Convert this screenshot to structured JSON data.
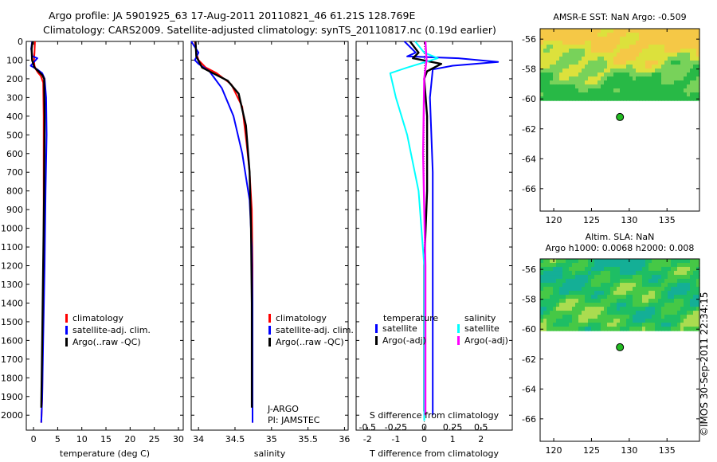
{
  "header": {
    "line1": "Argo profile: JA 5901925_63 17-Aug-2011 20110821_46 61.21S 128.769E",
    "line2": "Climatology: CARS2009. Satellite-adjusted climatology: synTS_20110817.nc (0.19d earlier)"
  },
  "watermark": "©IMOS 30-Sep-2011 22:34:15",
  "colors": {
    "climatology": "#ff0000",
    "satellite": "#0000ff",
    "argo": "#000000",
    "s_satellite": "#00ffff",
    "s_argo": "#ff00ff",
    "dot": "#22bb22"
  },
  "chart_data": [
    {
      "type": "line",
      "xlabel": "temperature (deg C)",
      "xlim": [
        -1.5,
        31
      ],
      "xticks": [
        "0",
        "5",
        "10",
        "15",
        "20",
        "25",
        "30"
      ],
      "ylim": [
        0,
        2080
      ],
      "yticks": [
        "0",
        "100",
        "200",
        "300",
        "400",
        "500",
        "600",
        "700",
        "800",
        "900",
        "1000",
        "1100",
        "1200",
        "1300",
        "1400",
        "1500",
        "1600",
        "1700",
        "1800",
        "1900",
        "2000"
      ],
      "legend": [
        "climatology",
        "satellite-adj. clim.",
        "Argo(..raw -QC)"
      ],
      "series": [
        {
          "name": "climatology",
          "x": [
            0.3,
            0.2,
            0.1,
            0.2,
            0.5,
            1.0,
            1.5,
            2.0,
            2.1,
            2.1,
            2.1,
            2.0,
            1.9,
            1.8,
            1.6
          ],
          "y": [
            0,
            60,
            100,
            130,
            150,
            170,
            185,
            220,
            400,
            700,
            1000,
            1300,
            1600,
            1900,
            2040
          ]
        },
        {
          "name": "satellite-adj. clim.",
          "x": [
            -0.3,
            -0.5,
            -0.2,
            0.8,
            -0.6,
            0.8,
            1.8,
            2.3,
            2.6,
            2.7,
            2.5,
            2.3,
            2.0,
            1.8,
            1.6
          ],
          "y": [
            0,
            40,
            80,
            90,
            130,
            150,
            170,
            200,
            300,
            500,
            800,
            1200,
            1600,
            1900,
            2040
          ]
        },
        {
          "name": "Argo(..raw -QC)",
          "x": [
            -0.2,
            -0.4,
            -0.3,
            0.2,
            1.0,
            1.8,
            2.2,
            2.3,
            2.2,
            2.0,
            1.8,
            1.6
          ],
          "y": [
            0,
            40,
            100,
            140,
            160,
            180,
            200,
            400,
            800,
            1200,
            1600,
            1960
          ]
        }
      ]
    },
    {
      "type": "line",
      "xlabel": "salinity",
      "xlim": [
        33.9,
        36.05
      ],
      "xticks": [
        "34",
        "34.5",
        "35",
        "35.5",
        "36"
      ],
      "ylim": [
        0,
        2080
      ],
      "legend": [
        "climatology",
        "satellite-adj. clim.",
        "Argo(..raw -QC)"
      ],
      "annotations": [
        "J-ARGO",
        "PI: JAMSTEC"
      ],
      "series": [
        {
          "name": "climatology",
          "x": [
            33.95,
            33.97,
            34.0,
            34.1,
            34.25,
            34.45,
            34.6,
            34.66,
            34.7,
            34.73,
            34.74,
            34.74,
            34.74
          ],
          "y": [
            0,
            60,
            100,
            140,
            170,
            230,
            350,
            550,
            700,
            900,
            1200,
            1600,
            2040
          ]
        },
        {
          "name": "satellite-adj. clim.",
          "x": [
            33.9,
            34.0,
            33.95,
            34.0,
            34.15,
            34.32,
            34.48,
            34.6,
            34.7,
            34.73,
            34.74,
            34.74,
            34.74
          ],
          "y": [
            0,
            60,
            100,
            120,
            160,
            250,
            400,
            600,
            850,
            1100,
            1400,
            1700,
            2040
          ]
        },
        {
          "name": "Argo(..raw -QC)",
          "x": [
            33.96,
            33.97,
            34.05,
            34.2,
            34.4,
            34.55,
            34.65,
            34.7,
            34.72,
            34.73,
            34.73
          ],
          "y": [
            0,
            80,
            140,
            170,
            210,
            280,
            450,
            700,
            1000,
            1400,
            1960
          ]
        }
      ]
    },
    {
      "type": "line",
      "xlabel": "T difference from climatology",
      "xlim": [
        -2.4,
        3.1
      ],
      "xticks": [
        "-2",
        "-1",
        "0",
        "1",
        "2"
      ],
      "top_axis_label": "S difference from climatology",
      "top_xlim": [
        -0.6,
        0.775
      ],
      "top_xticks": [
        "-0.5",
        "-0.25",
        "0",
        "0.25",
        "0.5"
      ],
      "ylim": [
        0,
        2080
      ],
      "legend_left_title": "temperature",
      "legend_right_title": "salinity",
      "legend": [
        "satellite",
        "Argo(-adj)",
        "satellite",
        "Argo(-adj)"
      ],
      "series": [
        {
          "name": "temperature satellite",
          "x": [
            -0.7,
            -0.3,
            -0.6,
            1.2,
            2.6,
            1.0,
            0.3,
            0.2,
            0.3,
            0.3,
            0.3,
            0.3
          ],
          "y": [
            0,
            60,
            80,
            90,
            110,
            130,
            150,
            300,
            700,
            1100,
            1500,
            2000
          ]
        },
        {
          "name": "temperature Argo(-adj)",
          "x": [
            -0.5,
            -0.2,
            -0.4,
            0.6,
            0.1,
            0.0,
            0.1,
            0.1,
            0.0,
            0.0
          ],
          "y": [
            0,
            60,
            90,
            120,
            160,
            200,
            400,
            800,
            1200,
            1980
          ]
        },
        {
          "name": "salinity satellite",
          "x": [
            -0.08,
            0.0,
            0.12,
            -0.15,
            -0.3,
            -0.25,
            -0.15,
            -0.05,
            0.0,
            0.0,
            0.0
          ],
          "y": [
            0,
            60,
            90,
            140,
            170,
            300,
            500,
            800,
            1200,
            1600,
            2030
          ]
        },
        {
          "name": "salinity Argo(-adj)",
          "x": [
            0.01,
            0.02,
            0.0,
            -0.01,
            0.01,
            0.01
          ],
          "y": [
            0,
            100,
            200,
            600,
            1200,
            2000
          ]
        }
      ]
    },
    {
      "type": "heatmap",
      "title": "AMSR-E SST: NaN Argo: -0.509",
      "xlim": [
        118.2,
        139.3
      ],
      "xticks": [
        "120",
        "125",
        "130",
        "135"
      ],
      "ylim": [
        -67.5,
        -55.3
      ],
      "yticks": [
        "-56",
        "-58",
        "-60",
        "-62",
        "-64",
        "-66"
      ],
      "data_rows_ylim": [
        -60.1,
        -55.3
      ],
      "argo_position": {
        "lon": 128.769,
        "lat": -61.21
      },
      "palette": "warm"
    },
    {
      "type": "heatmap",
      "title_line1": "Altim. SLA: NaN",
      "title_line2": "Argo h1000: 0.0068 h2000: 0.008",
      "xlim": [
        118.2,
        139.3
      ],
      "xticks": [
        "120",
        "125",
        "130",
        "135"
      ],
      "ylim": [
        -67.5,
        -55.3
      ],
      "yticks": [
        "-56",
        "-58",
        "-60",
        "-62",
        "-64",
        "-66"
      ],
      "data_rows_ylim": [
        -60.1,
        -55.3
      ],
      "argo_position": {
        "lon": 128.769,
        "lat": -61.21
      },
      "palette": "green"
    }
  ]
}
